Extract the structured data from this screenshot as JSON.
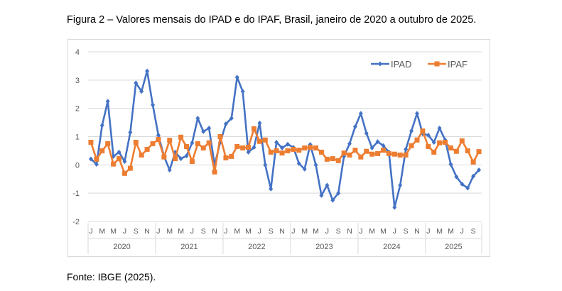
{
  "title": "Figura 2 – Valores mensais do IPAD e do IPAF, Brasil, janeiro de 2020 a outubro de 2025.",
  "source": "Fonte: IBGE (2025).",
  "chart_data": {
    "type": "line",
    "title": "",
    "xlabel": "",
    "ylabel": "",
    "ylim": [
      -2,
      4
    ],
    "yticks": [
      -2,
      -1,
      0,
      1,
      2,
      3,
      4
    ],
    "grid": true,
    "legend_position": "top-right",
    "years": [
      "2020",
      "2021",
      "2022",
      "2023",
      "2024",
      "2025"
    ],
    "month_tick_labels": [
      "J",
      "M",
      "M",
      "J",
      "S",
      "N"
    ],
    "start": "2020-01",
    "end": "2025-10",
    "series": [
      {
        "name": "IPAD",
        "color": "#4472c4",
        "marker": "diamond",
        "values": [
          0.21,
          0.02,
          1.4,
          2.25,
          0.3,
          0.45,
          0.12,
          1.15,
          2.9,
          2.6,
          3.32,
          2.12,
          1.05,
          0.3,
          -0.18,
          0.45,
          0.22,
          0.32,
          0.78,
          1.65,
          1.18,
          1.3,
          0.0,
          0.8,
          1.45,
          1.65,
          3.1,
          2.6,
          0.45,
          0.62,
          1.48,
          0.0,
          -0.85,
          0.8,
          0.6,
          0.73,
          0.62,
          0.05,
          -0.15,
          0.72,
          0.0,
          -1.08,
          -0.72,
          -1.25,
          -1.0,
          0.3,
          0.75,
          1.35,
          1.82,
          1.12,
          0.6,
          0.82,
          0.68,
          0.45,
          -1.5,
          -0.72,
          0.55,
          1.2,
          1.82,
          1.1,
          1.05,
          0.8,
          1.3,
          0.88,
          0.02,
          -0.42,
          -0.68,
          -0.82,
          -0.4,
          -0.18
        ]
      },
      {
        "name": "IPAF",
        "color": "#ed7d31",
        "marker": "square",
        "values": [
          0.8,
          0.2,
          0.5,
          0.75,
          0.03,
          0.22,
          -0.3,
          -0.12,
          0.8,
          0.35,
          0.55,
          0.75,
          0.9,
          0.28,
          0.87,
          0.22,
          0.98,
          0.65,
          0.12,
          0.75,
          0.6,
          0.78,
          -0.25,
          1.0,
          0.25,
          0.3,
          0.65,
          0.6,
          0.62,
          1.28,
          0.83,
          0.88,
          0.45,
          0.5,
          0.42,
          0.5,
          0.55,
          0.52,
          0.6,
          0.62,
          0.6,
          0.45,
          0.2,
          0.22,
          0.15,
          0.42,
          0.35,
          0.52,
          0.28,
          0.48,
          0.38,
          0.4,
          0.52,
          0.4,
          0.38,
          0.35,
          0.35,
          0.68,
          0.88,
          1.2,
          0.65,
          0.45,
          0.78,
          0.8,
          0.6,
          0.48,
          0.85,
          0.5,
          0.1,
          0.47
        ]
      }
    ]
  }
}
